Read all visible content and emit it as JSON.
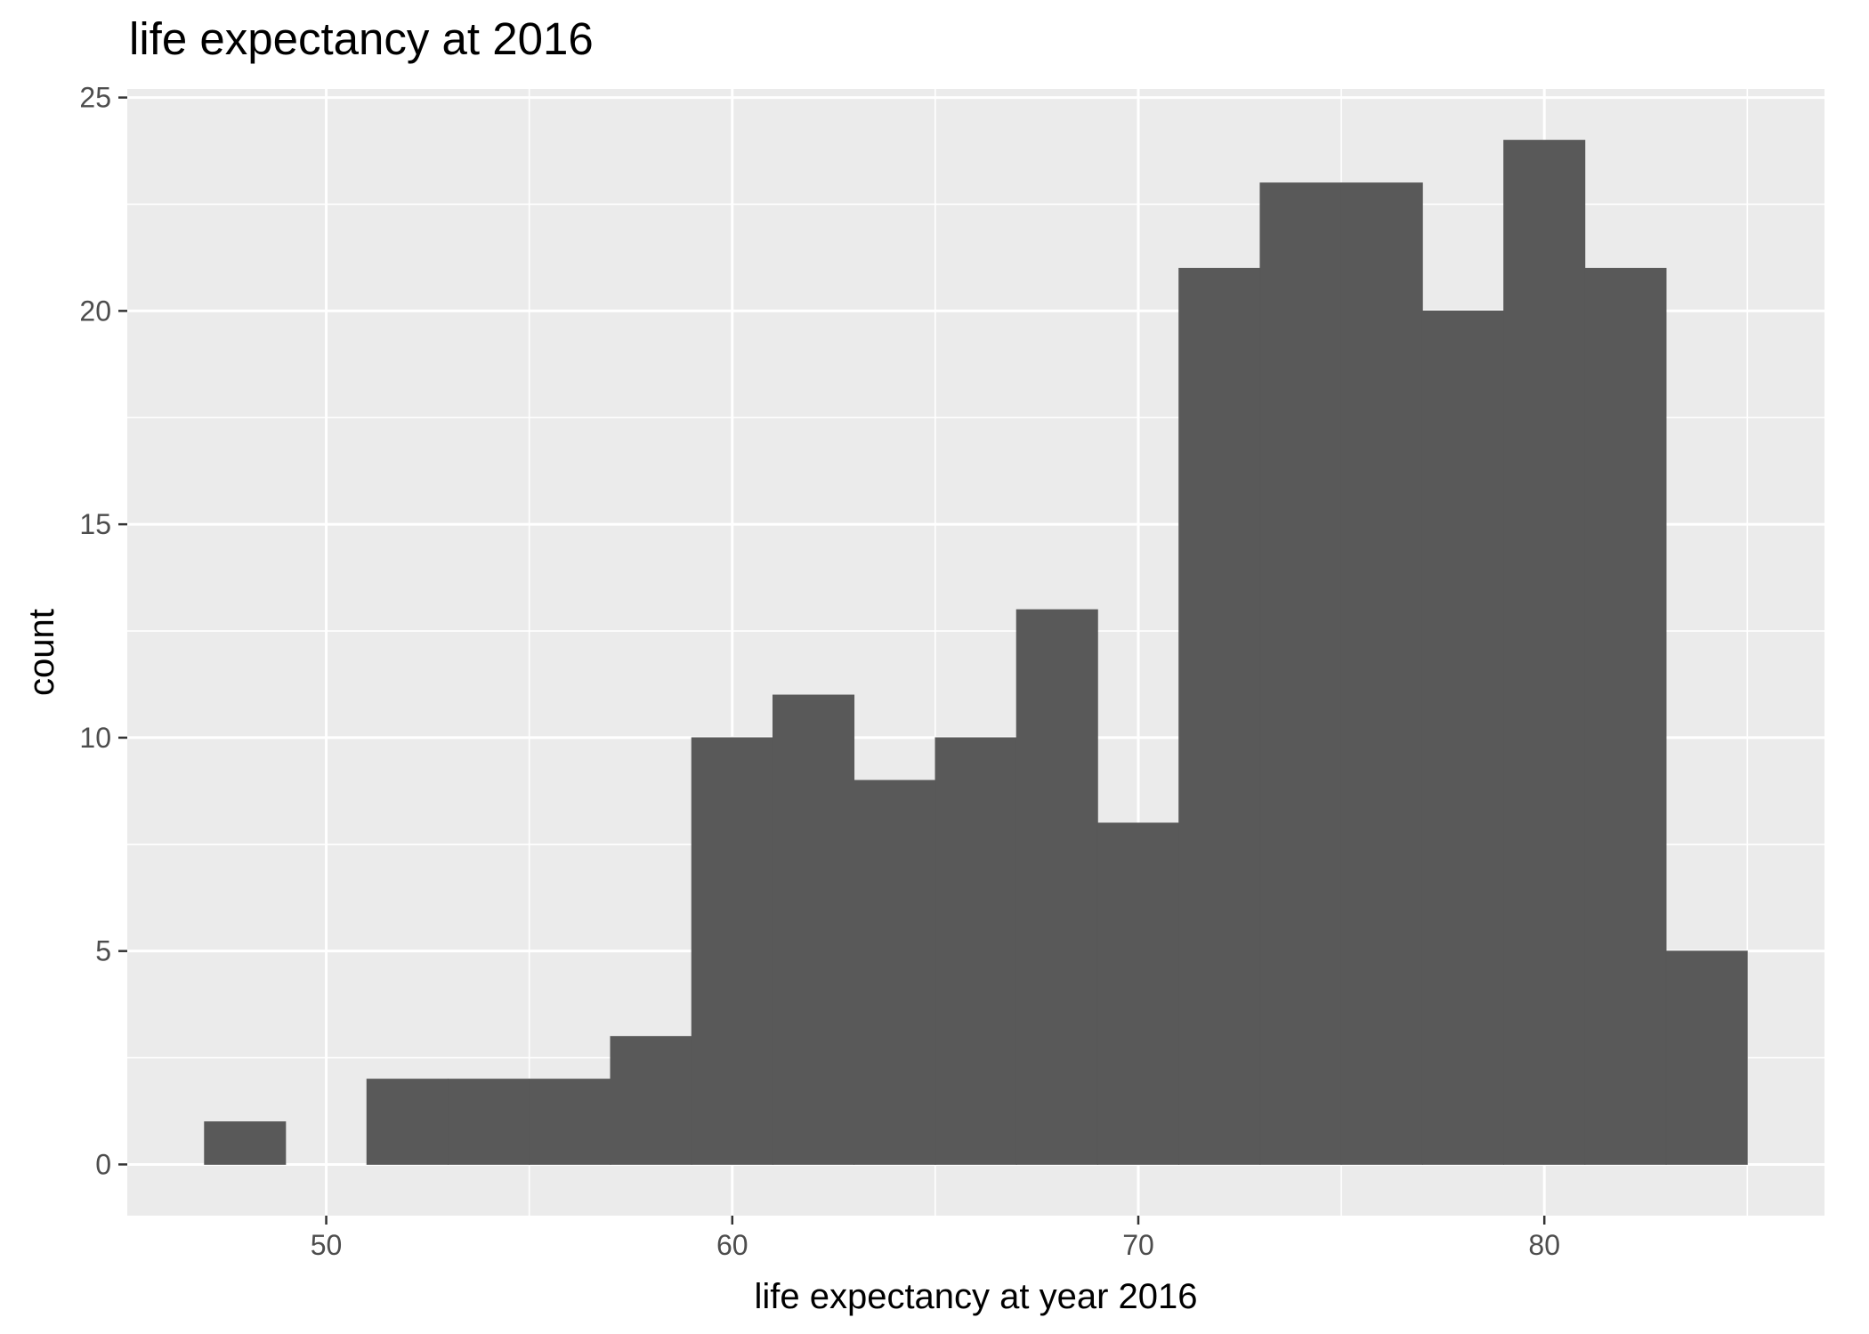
{
  "chart_data": {
    "type": "bar",
    "title": "life expectancy at 2016",
    "xlabel": "life expectancy at year 2016",
    "ylabel": "count",
    "bin_width": 2,
    "bins": [
      {
        "x_start": 47,
        "x_end": 49,
        "count": 1
      },
      {
        "x_start": 49,
        "x_end": 51,
        "count": 0
      },
      {
        "x_start": 51,
        "x_end": 53,
        "count": 2
      },
      {
        "x_start": 53,
        "x_end": 55,
        "count": 2
      },
      {
        "x_start": 55,
        "x_end": 57,
        "count": 2
      },
      {
        "x_start": 57,
        "x_end": 59,
        "count": 3
      },
      {
        "x_start": 59,
        "x_end": 61,
        "count": 10
      },
      {
        "x_start": 61,
        "x_end": 63,
        "count": 11
      },
      {
        "x_start": 63,
        "x_end": 65,
        "count": 9
      },
      {
        "x_start": 65,
        "x_end": 67,
        "count": 10
      },
      {
        "x_start": 67,
        "x_end": 69,
        "count": 13
      },
      {
        "x_start": 69,
        "x_end": 71,
        "count": 8
      },
      {
        "x_start": 71,
        "x_end": 73,
        "count": 21
      },
      {
        "x_start": 73,
        "x_end": 75,
        "count": 23
      },
      {
        "x_start": 75,
        "x_end": 77,
        "count": 23
      },
      {
        "x_start": 77,
        "x_end": 79,
        "count": 20
      },
      {
        "x_start": 79,
        "x_end": 81,
        "count": 24
      },
      {
        "x_start": 81,
        "x_end": 83,
        "count": 21
      },
      {
        "x_start": 83,
        "x_end": 85,
        "count": 5
      }
    ],
    "x_ticks": [
      50,
      60,
      70,
      80
    ],
    "y_ticks": [
      0,
      5,
      10,
      15,
      20,
      25
    ],
    "xlim": [
      45.1,
      86.9
    ],
    "ylim": [
      -1.2,
      25.2
    ],
    "grid": true,
    "legend": "none",
    "colors": {
      "bar_fill": "#595959",
      "panel_background": "#ebebeb",
      "grid_line": "#ffffff",
      "tick_label": "#4d4d4d",
      "tick_mark": "#333333"
    }
  }
}
